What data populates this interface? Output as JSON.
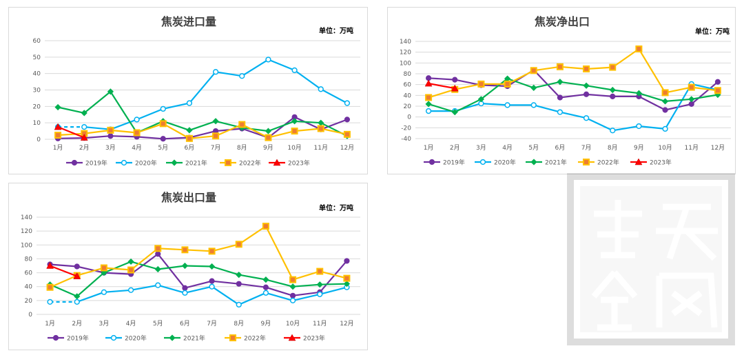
{
  "unit_label": "单位：万吨",
  "month_labels": [
    "1月",
    "2月",
    "3月",
    "4月",
    "5月",
    "6月",
    "7月",
    "8月",
    "9月",
    "10月",
    "11月",
    "12月"
  ],
  "series_colors": {
    "2019年": "#7030a0",
    "2020年": "#00b0f0",
    "2021年": "#00b050",
    "2022年": "#ffc000",
    "2023年": "#ff0000"
  },
  "watermark_text": "紫天金凤",
  "chart_data": [
    {
      "type": "line",
      "title": "焦炭进口量",
      "unit": "单位：万吨",
      "categories": [
        "1月",
        "2月",
        "3月",
        "4月",
        "5月",
        "6月",
        "7月",
        "8月",
        "9月",
        "10月",
        "11月",
        "12月"
      ],
      "ylim": [
        0,
        60
      ],
      "yticks": [
        0,
        10,
        20,
        30,
        40,
        50,
        60
      ],
      "grid": true,
      "legend": "bottom",
      "series": [
        {
          "name": "2019年",
          "color": "#7030a0",
          "marker": "circle",
          "values": [
            0.5,
            0.8,
            2,
            1.5,
            0.3,
            1,
            5,
            6.5,
            1,
            13.5,
            6,
            12
          ]
        },
        {
          "name": "2020年",
          "color": "#00b0f0",
          "marker": "circle-open",
          "values": [
            7.5,
            7.5,
            6,
            12,
            18.5,
            22,
            41,
            38.5,
            48.5,
            42,
            30.5,
            22
          ],
          "dashed_until": 2
        },
        {
          "name": "2021年",
          "color": "#00b050",
          "marker": "diamond",
          "values": [
            19.5,
            16,
            29,
            4,
            11,
            5.5,
            11,
            7,
            5,
            11,
            10,
            2
          ]
        },
        {
          "name": "2022年",
          "color": "#ffc000",
          "marker": "square",
          "values": [
            2.5,
            3.5,
            5.5,
            4,
            9.5,
            0.5,
            2,
            9,
            1,
            5,
            6.5,
            3
          ]
        },
        {
          "name": "2023年",
          "color": "#ff0000",
          "marker": "triangle",
          "values": [
            7.5,
            1,
            null,
            null,
            null,
            null,
            null,
            null,
            null,
            null,
            null,
            null
          ]
        }
      ]
    },
    {
      "type": "line",
      "title": "焦炭净出口",
      "unit": "单位：万吨",
      "categories": [
        "1月",
        "2月",
        "3月",
        "4月",
        "5月",
        "6月",
        "7月",
        "8月",
        "9月",
        "10月",
        "11月",
        "12月"
      ],
      "ylim": [
        -40,
        140
      ],
      "yticks": [
        -40,
        -20,
        0,
        20,
        40,
        60,
        80,
        100,
        120,
        140
      ],
      "grid": true,
      "legend": "bottom",
      "series": [
        {
          "name": "2019年",
          "color": "#7030a0",
          "marker": "circle",
          "values": [
            72,
            69,
            59,
            57,
            87,
            36,
            42,
            38,
            38,
            13,
            24,
            65
          ]
        },
        {
          "name": "2020年",
          "color": "#00b0f0",
          "marker": "circle-open",
          "values": [
            11,
            11,
            25,
            22,
            22,
            9,
            -2,
            -25,
            -17,
            -22,
            61,
            50
          ]
        },
        {
          "name": "2021年",
          "color": "#00b050",
          "marker": "diamond",
          "values": [
            24,
            9,
            33,
            71,
            54,
            65,
            58,
            50,
            44,
            29,
            33,
            41
          ]
        },
        {
          "name": "2022年",
          "color": "#ffc000",
          "marker": "square",
          "values": [
            36,
            51,
            61,
            61,
            86,
            93,
            89,
            92,
            126,
            45,
            55,
            49
          ]
        },
        {
          "name": "2023年",
          "color": "#ff0000",
          "marker": "triangle",
          "values": [
            62,
            53,
            null,
            null,
            null,
            null,
            null,
            null,
            null,
            null,
            null,
            null
          ]
        }
      ]
    },
    {
      "type": "line",
      "title": "焦炭出口量",
      "unit": "单位：万吨",
      "categories": [
        "1月",
        "2月",
        "3月",
        "4月",
        "5月",
        "6月",
        "7月",
        "8月",
        "9月",
        "10月",
        "11月",
        "12月"
      ],
      "ylim": [
        0,
        140
      ],
      "yticks": [
        0,
        20,
        40,
        60,
        80,
        100,
        120,
        140
      ],
      "grid": true,
      "legend": "bottom",
      "series": [
        {
          "name": "2019年",
          "color": "#7030a0",
          "marker": "circle",
          "values": [
            72,
            69,
            60,
            58,
            87,
            38,
            48,
            44,
            39,
            27,
            32,
            77
          ]
        },
        {
          "name": "2020年",
          "color": "#00b0f0",
          "marker": "circle-open",
          "values": [
            18,
            18,
            32,
            35,
            42,
            31,
            40,
            14,
            31,
            20,
            29,
            39
          ],
          "dashed_until": 2
        },
        {
          "name": "2021年",
          "color": "#00b050",
          "marker": "diamond",
          "values": [
            43,
            26,
            60,
            76,
            65,
            70,
            69,
            57,
            50,
            40,
            43,
            44
          ]
        },
        {
          "name": "2022年",
          "color": "#ffc000",
          "marker": "square",
          "values": [
            39,
            56,
            67,
            64,
            95,
            93,
            91,
            101,
            127,
            50,
            62,
            52
          ]
        },
        {
          "name": "2023年",
          "color": "#ff0000",
          "marker": "triangle",
          "values": [
            70,
            55,
            null,
            null,
            null,
            null,
            null,
            null,
            null,
            null,
            null,
            null
          ]
        }
      ]
    }
  ]
}
